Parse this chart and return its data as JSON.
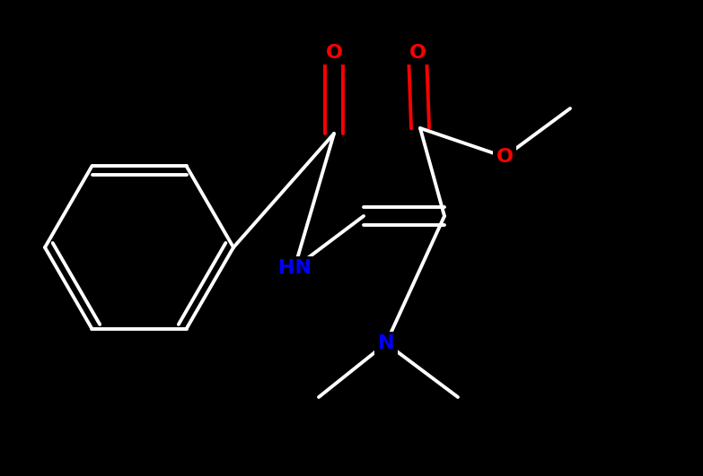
{
  "bg": "#000000",
  "wc": "#ffffff",
  "rc": "#ff0000",
  "bc_n": "#0000ff",
  "lw": 2.8,
  "fs": 16,
  "dbo": 0.1,
  "xlim": [
    0,
    7.83
  ],
  "ylim": [
    0,
    5.31
  ]
}
